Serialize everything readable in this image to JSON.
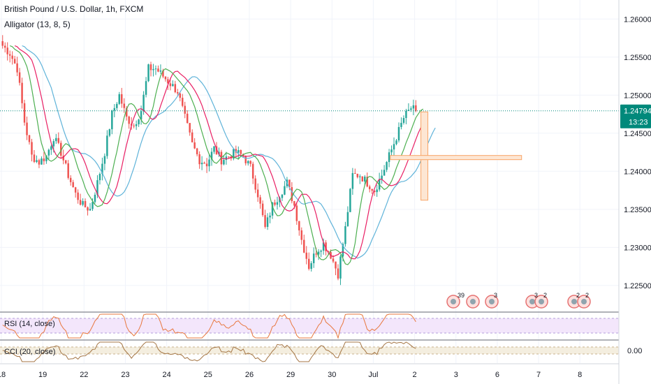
{
  "header": {
    "symbol_title": "British Pound / U.S. Dollar, 1h, FXCM",
    "indicator_label": "Alligator (13, 8, 5)"
  },
  "price_axis": {
    "ticks": [
      "1.26000",
      "1.25500",
      "1.25000",
      "1.24500",
      "1.24000",
      "1.23500",
      "1.23000",
      "1.22500"
    ],
    "last_price": "1.24794",
    "countdown": "13:23"
  },
  "rsi_pane": {
    "label": "RSI (14, close)"
  },
  "cci_pane": {
    "label": "CCI (20, close)",
    "tick": "0.00"
  },
  "time_axis": {
    "ticks": [
      "18",
      "19",
      "22",
      "23",
      "24",
      "25",
      "26",
      "29",
      "30",
      "Jul",
      "2",
      "3",
      "6",
      "7",
      "8"
    ]
  },
  "event_badges": [
    "39",
    "3",
    "3",
    "2",
    "2",
    "2"
  ],
  "colors": {
    "bull": "#26a69a",
    "bear": "#ef5350",
    "jaw": "#5fb3d9",
    "teeth": "#e91e63",
    "lips": "#4caf50",
    "rsi_line": "#e8773d",
    "rsi_band": "#f3e6fb",
    "cci_line": "#a47544",
    "cci_band": "#f4eedf",
    "last_price": "#00897b",
    "marker": "#f8a566"
  },
  "chart_data": {
    "type": "candlestick",
    "title": "British Pound / U.S. Dollar, 1h, FXCM",
    "y_axis_range": [
      1.2215,
      1.2625
    ],
    "last_price": 1.24794,
    "x_labels": [
      "18",
      "19",
      "22",
      "23",
      "24",
      "25",
      "26",
      "29",
      "30",
      "Jul",
      "2",
      "3",
      "6",
      "7",
      "8"
    ],
    "close_path": [
      [
        0,
        1.2565
      ],
      [
        3,
        1.2555
      ],
      [
        6,
        1.2535
      ],
      [
        9,
        1.2465
      ],
      [
        12,
        1.242
      ],
      [
        15,
        1.2412
      ],
      [
        18,
        1.242
      ],
      [
        21,
        1.2445
      ],
      [
        24,
        1.2425
      ],
      [
        27,
        1.2395
      ],
      [
        30,
        1.237
      ],
      [
        33,
        1.2355
      ],
      [
        36,
        1.235
      ],
      [
        39,
        1.2385
      ],
      [
        42,
        1.2425
      ],
      [
        45,
        1.2475
      ],
      [
        48,
        1.25
      ],
      [
        51,
        1.247
      ],
      [
        54,
        1.246
      ],
      [
        57,
        1.248
      ],
      [
        60,
        1.2535
      ],
      [
        63,
        1.2535
      ],
      [
        66,
        1.2525
      ],
      [
        69,
        1.2515
      ],
      [
        72,
        1.2505
      ],
      [
        75,
        1.247
      ],
      [
        78,
        1.2435
      ],
      [
        81,
        1.2415
      ],
      [
        84,
        1.241
      ],
      [
        87,
        1.243
      ],
      [
        90,
        1.2415
      ],
      [
        93,
        1.242
      ],
      [
        96,
        1.2425
      ],
      [
        99,
        1.242
      ],
      [
        102,
        1.2405
      ],
      [
        105,
        1.237
      ],
      [
        108,
        1.2325
      ],
      [
        111,
        1.2355
      ],
      [
        114,
        1.237
      ],
      [
        117,
        1.2385
      ],
      [
        120,
        1.2355
      ],
      [
        123,
        1.231
      ],
      [
        126,
        1.2275
      ],
      [
        129,
        1.2295
      ],
      [
        132,
        1.2305
      ],
      [
        135,
        1.229
      ],
      [
        138,
        1.2265
      ],
      [
        141,
        1.2325
      ],
      [
        144,
        1.2395
      ],
      [
        147,
        1.2395
      ],
      [
        150,
        1.2385
      ],
      [
        153,
        1.2375
      ],
      [
        156,
        1.2395
      ],
      [
        159,
        1.242
      ],
      [
        162,
        1.2445
      ],
      [
        165,
        1.247
      ],
      [
        168,
        1.2483
      ],
      [
        170,
        1.2479
      ]
    ],
    "alligator": {
      "jaw_period": 13,
      "teeth_period": 8,
      "lips_period": 5,
      "jaw_offset": 8,
      "teeth_offset": 5,
      "lips_offset": 3
    },
    "rsi": {
      "label": "RSI (14, close)",
      "period": 14
    },
    "cci": {
      "label": "CCI (20, close)",
      "period": 20,
      "tick": 0.0
    },
    "position_marker": {
      "entry_bar": 172,
      "horizontal_level": 1.2418,
      "top": 1.2478,
      "bottom": 1.2362
    }
  }
}
